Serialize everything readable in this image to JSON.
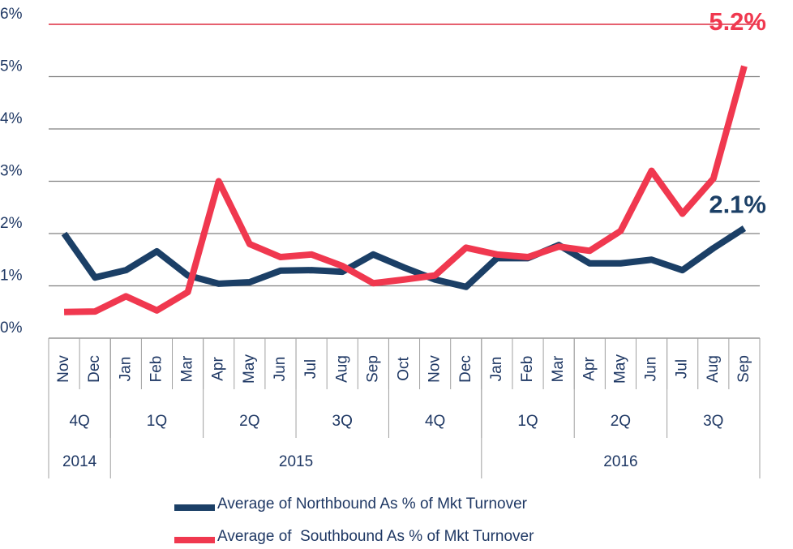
{
  "chart_data": {
    "type": "line",
    "categories": [
      "Nov",
      "Dec",
      "Jan",
      "Feb",
      "Mar",
      "Apr",
      "May",
      "Jun",
      "Jul",
      "Aug",
      "Sep",
      "Oct",
      "Nov",
      "Dec",
      "Jan",
      "Feb",
      "Mar",
      "Apr",
      "May",
      "Jun",
      "Jul",
      "Aug",
      "Sep"
    ],
    "quarter_groups": [
      {
        "label": "4Q",
        "span": 2
      },
      {
        "label": "1Q",
        "span": 3
      },
      {
        "label": "2Q",
        "span": 3
      },
      {
        "label": "3Q",
        "span": 3
      },
      {
        "label": "4Q",
        "span": 3
      },
      {
        "label": "1Q",
        "span": 3
      },
      {
        "label": "2Q",
        "span": 3
      },
      {
        "label": "3Q",
        "span": 3
      }
    ],
    "year_groups": [
      {
        "label": "2014",
        "span": 2
      },
      {
        "label": "2015",
        "span": 12
      },
      {
        "label": "2016",
        "span": 9
      }
    ],
    "series": [
      {
        "name": "Average of Northbound As % of Mkt Turnover",
        "color": "#1b3f66",
        "values": [
          2.0,
          1.16,
          1.3,
          1.66,
          1.2,
          1.04,
          1.07,
          1.29,
          1.3,
          1.27,
          1.6,
          1.35,
          1.12,
          0.98,
          1.53,
          1.53,
          1.78,
          1.43,
          1.43,
          1.5,
          1.3,
          1.72,
          2.1
        ],
        "value_labels": [
          null,
          null,
          null,
          null,
          null,
          null,
          null,
          null,
          null,
          null,
          null,
          null,
          null,
          null,
          null,
          null,
          null,
          null,
          null,
          null,
          null,
          null,
          "2.1%"
        ]
      },
      {
        "name": "Average of  Southbound As % of Mkt Turnover",
        "color": "#f0384f",
        "values": [
          0.5,
          0.51,
          0.8,
          0.53,
          0.88,
          3.0,
          1.8,
          1.55,
          1.6,
          1.38,
          1.05,
          1.12,
          1.2,
          1.73,
          1.6,
          1.55,
          1.75,
          1.67,
          2.05,
          3.2,
          2.38,
          3.05,
          5.2
        ],
        "value_labels": [
          null,
          null,
          null,
          null,
          null,
          null,
          null,
          null,
          null,
          null,
          null,
          null,
          null,
          null,
          null,
          null,
          null,
          null,
          null,
          null,
          null,
          null,
          "5.2%"
        ]
      }
    ],
    "ylim": [
      0,
      6
    ],
    "yticks": [
      {
        "value": 0,
        "label": "0%"
      },
      {
        "value": 1,
        "label": "1%"
      },
      {
        "value": 2,
        "label": "2%"
      },
      {
        "value": 3,
        "label": "3%"
      },
      {
        "value": 4,
        "label": "4%"
      },
      {
        "value": 5,
        "label": "5%"
      },
      {
        "value": 6,
        "label": "6%"
      }
    ],
    "grid": true,
    "reference_line": {
      "value": 6,
      "color": "#e8374a"
    },
    "legend": "bottom"
  }
}
